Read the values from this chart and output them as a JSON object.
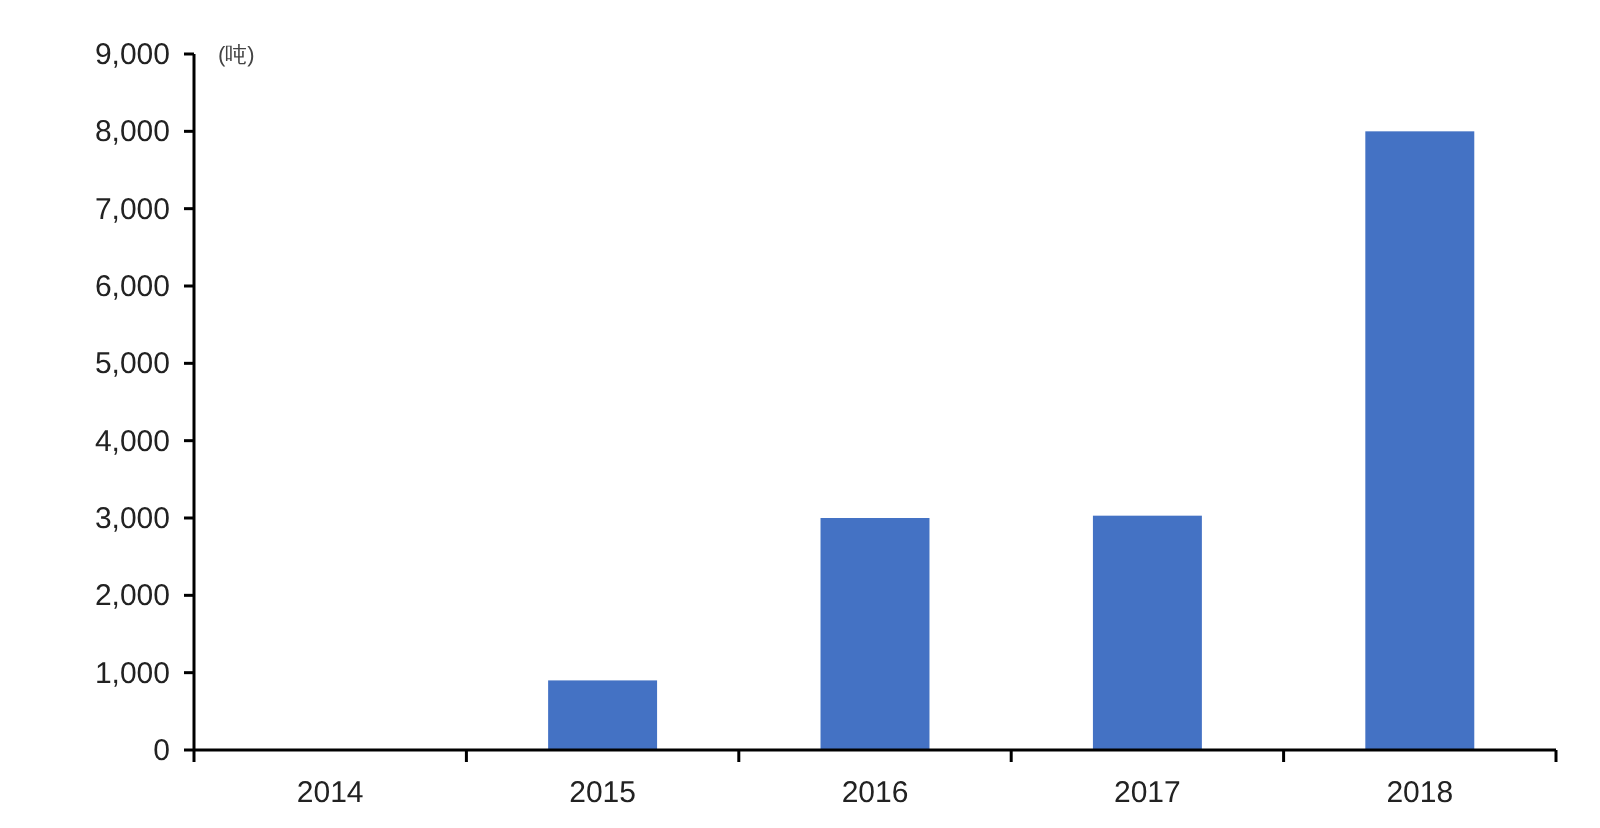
{
  "chart_data": {
    "type": "bar",
    "ylabel": "(吨)",
    "categories": [
      "2014",
      "2015",
      "2016",
      "2017",
      "2018"
    ],
    "values": [
      0,
      900,
      3000,
      3030,
      8000
    ],
    "color": "#4472c4",
    "ylim": [
      0,
      9000
    ],
    "yticks": [
      {
        "value": 0,
        "label": "0"
      },
      {
        "value": 1000,
        "label": "1,000"
      },
      {
        "value": 2000,
        "label": "2,000"
      },
      {
        "value": 3000,
        "label": "3,000"
      },
      {
        "value": 4000,
        "label": "4,000"
      },
      {
        "value": 5000,
        "label": "5,000"
      },
      {
        "value": 6000,
        "label": "6,000"
      },
      {
        "value": 7000,
        "label": "7,000"
      },
      {
        "value": 8000,
        "label": "8,000"
      },
      {
        "value": 9000,
        "label": "9,000"
      }
    ],
    "grid": false
  }
}
